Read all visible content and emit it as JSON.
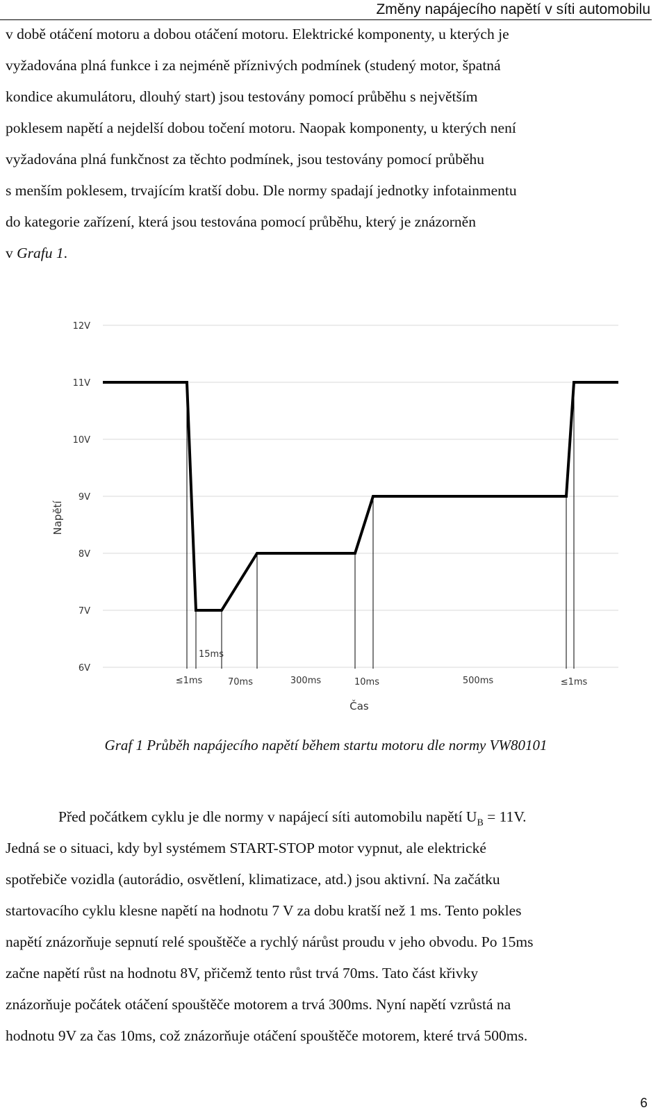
{
  "header": {
    "title": "Změny napájecího napětí v síti automobilu"
  },
  "para1": {
    "lines": [
      "v době otáčení motoru a dobou otáčení motoru. Elektrické komponenty, u kterých je",
      "vyžadována plná funkce i za nejméně příznivých podmínek (studený motor, špatná",
      "kondice akumulátoru, dlouhý start) jsou testovány pomocí průběhu s největším",
      "poklesem napětí a nejdelší dobou točení motoru. Naopak komponenty, u kterých není",
      "vyžadována plná funkčnost za těchto podmínek, jsou testovány pomocí průběhu",
      "s menším poklesem, trvajícím kratší dobu. Dle normy spadají jednotky infotainmentu",
      "do kategorie zařízení, která jsou testována pomocí průběhu, který je znázorněn"
    ],
    "last_prefix": "v ",
    "last_italic": "Grafu 1",
    "last_suffix": "."
  },
  "chart_data": {
    "type": "line",
    "ylabel": "Napětí",
    "xlabel": "Čas",
    "y_ticks": [
      "12V",
      "11V",
      "10V",
      "9V",
      "8V",
      "7V",
      "6V"
    ],
    "ylim": [
      6,
      12
    ],
    "grid": false,
    "segments": [
      {
        "label": "≤1ms",
        "from_v": 11,
        "to_v": 7
      },
      {
        "label": "15ms",
        "from_v": 7,
        "to_v": 7
      },
      {
        "label": "70ms",
        "from_v": 7,
        "to_v": 8
      },
      {
        "label": "300ms",
        "from_v": 8,
        "to_v": 8
      },
      {
        "label": "10ms",
        "from_v": 8,
        "to_v": 9
      },
      {
        "label": "500ms",
        "from_v": 9,
        "to_v": 9
      },
      {
        "label": "≤1ms",
        "from_v": 9,
        "to_v": 11
      }
    ]
  },
  "caption": "Graf 1 Průběh napájecího napětí během startu motoru dle normy VW80101",
  "para2": {
    "first_line_pre": "Před počátkem cyklu je dle normy v napájecí síti automobilu napětí U",
    "first_line_sub": "B",
    "first_line_post": " = 11V.",
    "lines": [
      "Jedná se o situaci, kdy byl systémem START-STOP motor vypnut, ale elektrické",
      "spotřebiče vozidla (autorádio, osvětlení, klimatizace, atd.) jsou aktivní. Na začátku",
      "startovacího cyklu klesne napětí na hodnotu 7 V za dobu kratší než 1 ms. Tento pokles",
      "napětí znázorňuje sepnutí relé spouštěče a rychlý nárůst proudu v jeho obvodu. Po 15ms",
      "začne napětí růst na hodnotu 8V, přičemž tento růst trvá 70ms. Tato část křivky",
      "znázorňuje počátek otáčení spouštěče motorem a trvá 300ms. Nyní napětí vzrůstá na",
      "hodnotu 9V za čas 10ms, což znázorňuje otáčení spouštěče motorem, které trvá 500ms."
    ]
  },
  "page_number": "6"
}
